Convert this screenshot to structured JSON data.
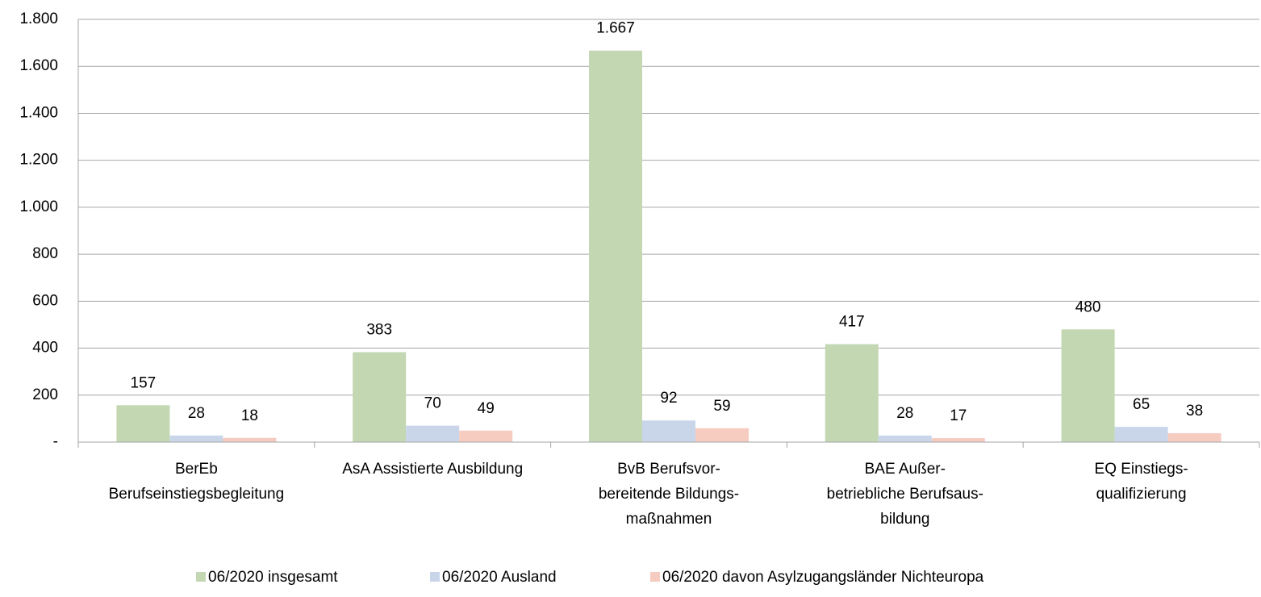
{
  "chart_data": {
    "type": "bar",
    "categories": [
      [
        "BerEb",
        "Berufseinstiegsbegleitung"
      ],
      [
        "AsA Assistierte Ausbildung"
      ],
      [
        "BvB Berufsvor-",
        "bereitende Bildungs-",
        "maßnahmen"
      ],
      [
        "BAE Außer-",
        "betriebliche Berufsaus-",
        "bildung"
      ],
      [
        "EQ Einstiegs-",
        "qualifizierung"
      ]
    ],
    "series": [
      {
        "name": "06/2020 insgesamt",
        "color": "#c3d7b3",
        "values": [
          157,
          383,
          1667,
          417,
          480
        ],
        "value_labels": [
          "157",
          "383",
          "1.667",
          "417",
          "480"
        ]
      },
      {
        "name": "06/2020 Ausland",
        "color": "#c9d6ea",
        "values": [
          28,
          70,
          92,
          28,
          65
        ]
      },
      {
        "name": "06/2020 davon Asylzugangsländer Nichteuropa",
        "color": "#f6cbc0",
        "values": [
          18,
          49,
          59,
          17,
          38
        ]
      }
    ],
    "ylim": [
      0,
      1800
    ],
    "yticks": [
      {
        "value": 0,
        "label": "-"
      },
      200,
      400,
      600,
      800,
      {
        "value": 1000,
        "label": "1.000"
      },
      {
        "value": 1200,
        "label": "1.200"
      },
      {
        "value": 1400,
        "label": "1.400"
      },
      {
        "value": 1600,
        "label": "1.600"
      },
      {
        "value": 1800,
        "label": "1.800"
      }
    ],
    "grid": true,
    "legend": "bottom"
  }
}
